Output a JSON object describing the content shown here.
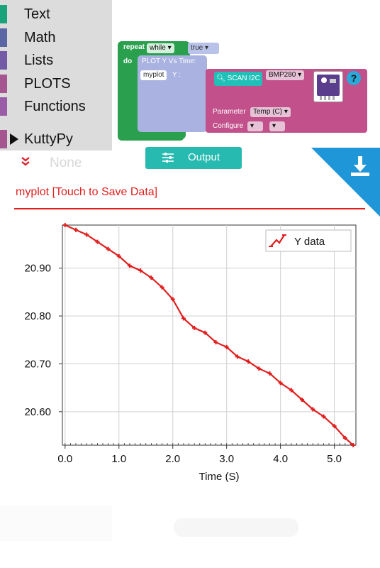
{
  "toolbox": {
    "categories": [
      {
        "label": "Text",
        "color": "#1aa37a"
      },
      {
        "label": "Math",
        "color": "#5b67a5"
      },
      {
        "label": "Lists",
        "color": "#745ba5"
      },
      {
        "label": "PLOTS",
        "color": "#a5558f"
      },
      {
        "label": "Functions",
        "color": "#9a5ca6"
      }
    ],
    "kuttypy": {
      "label": "KuttyPy",
      "color": "#a5558f"
    },
    "ghost_label": "None",
    "collapse_icon": "double-chevron-down-icon"
  },
  "blocks": {
    "repeat": "repeat",
    "while": "while ▾",
    "true": "true ▾",
    "do": "do",
    "plot_header": "PLOT Y Vs Time:",
    "plot_name": "myplot",
    "plot_y": "Y :",
    "scan": "SCAN I2C",
    "sensor": "BMP280 ▾",
    "parameter_label": "Parameter",
    "parameter_value": "Temp (C) ▾",
    "configure_label": "Configure",
    "configure_1": "▾",
    "configure_2": "▾",
    "help": "?"
  },
  "toolbar": {
    "output_label": "Output",
    "download_icon": "download-icon"
  },
  "plot": {
    "title": "myplot [Touch to Save Data]"
  },
  "colors": {
    "accent": "#e21f1f",
    "teal": "#26bab0",
    "blue": "#1f96d8"
  },
  "chart_data": {
    "type": "line",
    "title": "",
    "xlabel": "Time (S)",
    "ylabel": "",
    "xlim": [
      -0.05,
      5.4
    ],
    "ylim": [
      20.53,
      20.99
    ],
    "xticks": [
      "0.0",
      "1.0",
      "2.0",
      "3.0",
      "4.0",
      "5.0"
    ],
    "yticks": [
      "20.60",
      "20.70",
      "20.80",
      "20.90"
    ],
    "grid": true,
    "legend": "top-right",
    "series": [
      {
        "name": "Y data",
        "color": "#e21f1f",
        "x": [
          0.0,
          0.2,
          0.4,
          0.6,
          0.8,
          1.0,
          1.2,
          1.4,
          1.6,
          1.8,
          2.0,
          2.2,
          2.4,
          2.6,
          2.8,
          3.0,
          3.2,
          3.4,
          3.6,
          3.8,
          4.0,
          4.2,
          4.4,
          4.6,
          4.8,
          5.0,
          5.2,
          5.35
        ],
        "y": [
          20.99,
          20.98,
          20.97,
          20.955,
          20.94,
          20.925,
          20.905,
          20.895,
          20.88,
          20.86,
          20.835,
          20.795,
          20.775,
          20.765,
          20.745,
          20.735,
          20.715,
          20.705,
          20.69,
          20.68,
          20.66,
          20.645,
          20.625,
          20.605,
          20.59,
          20.57,
          20.545,
          20.53
        ]
      }
    ]
  }
}
